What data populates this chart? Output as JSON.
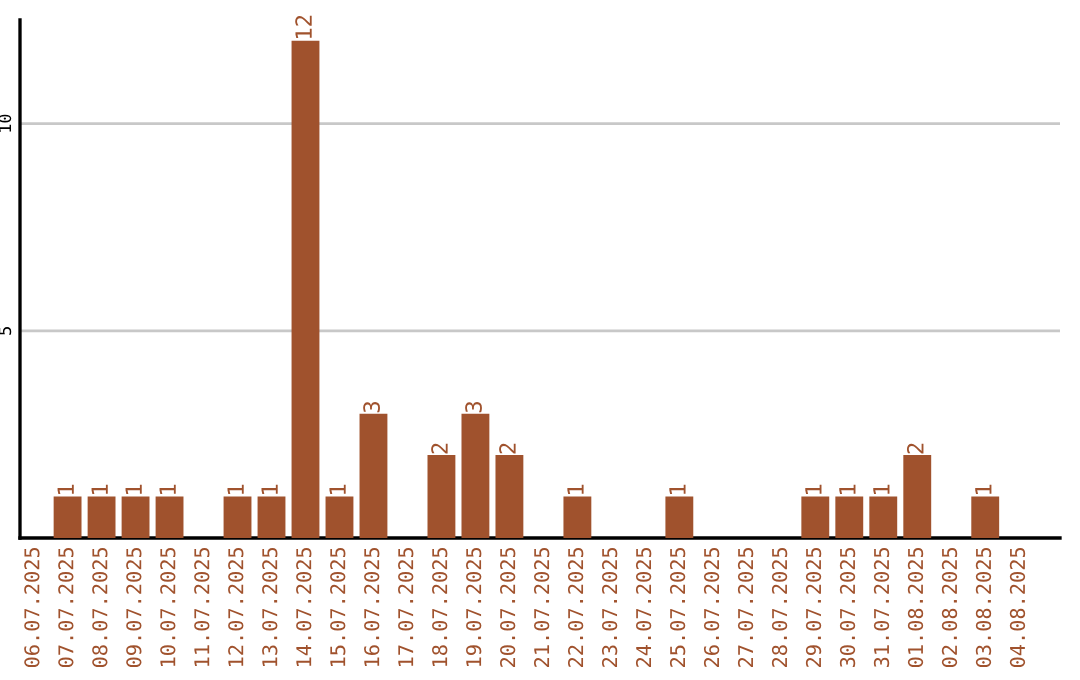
{
  "chart_data": {
    "type": "bar",
    "categories": [
      "06.07.2025",
      "07.07.2025",
      "08.07.2025",
      "09.07.2025",
      "10.07.2025",
      "11.07.2025",
      "12.07.2025",
      "13.07.2025",
      "14.07.2025",
      "15.07.2025",
      "16.07.2025",
      "17.07.2025",
      "18.07.2025",
      "19.07.2025",
      "20.07.2025",
      "21.07.2025",
      "22.07.2025",
      "23.07.2025",
      "24.07.2025",
      "25.07.2025",
      "26.07.2025",
      "27.07.2025",
      "28.07.2025",
      "29.07.2025",
      "30.07.2025",
      "31.07.2025",
      "01.08.2025",
      "02.08.2025",
      "03.08.2025",
      "04.08.2025"
    ],
    "values": [
      0,
      1,
      1,
      1,
      1,
      0,
      1,
      1,
      12,
      1,
      3,
      0,
      2,
      3,
      2,
      0,
      1,
      0,
      0,
      1,
      0,
      0,
      0,
      1,
      1,
      1,
      2,
      0,
      1,
      0
    ],
    "value_labels": [
      null,
      "1",
      "1",
      "1",
      "1",
      null,
      "1",
      "1",
      "12",
      "1",
      "3",
      null,
      "2",
      "3",
      "2",
      null,
      "1",
      null,
      null,
      "1",
      null,
      null,
      null,
      "1",
      "1",
      "1",
      "2",
      null,
      "1",
      null
    ],
    "color": "#a0522d",
    "ylim": [
      0,
      12.5
    ],
    "yticks": [
      5,
      10
    ],
    "grid": "y"
  }
}
